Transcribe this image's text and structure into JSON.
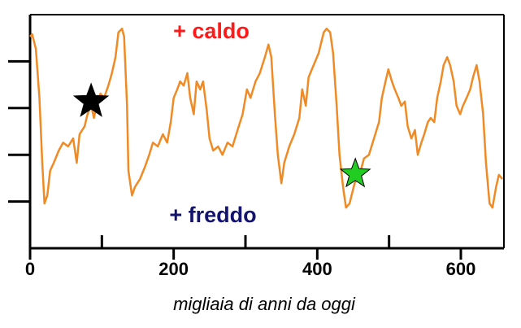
{
  "chart_data": {
    "type": "line",
    "x_label": "migliaia di anni da oggi",
    "annotations": [
      "+ caldo",
      "+ freddo"
    ],
    "annotation_colors": [
      "#ff1a1a",
      "#141470"
    ],
    "xlim": [
      0,
      660
    ],
    "xticks": [
      0,
      200,
      400,
      600
    ],
    "xminor_ticks": [
      100,
      300,
      500
    ],
    "ylim": [
      0,
      5
    ],
    "yticks": [
      1,
      2,
      3,
      4
    ],
    "ytick_labels": false,
    "series": [
      {
        "color": "#f08a24",
        "x": [
          0,
          3,
          8,
          13,
          17,
          20,
          24,
          28,
          33,
          40,
          46,
          53,
          60,
          65,
          69,
          76,
          80,
          85,
          89,
          94,
          98,
          103,
          109,
          114,
          119,
          123,
          128,
          131,
          135,
          137,
          142,
          146,
          153,
          160,
          166,
          171,
          178,
          185,
          191,
          196,
          200,
          205,
          209,
          214,
          219,
          223,
          228,
          232,
          237,
          241,
          246,
          250,
          255,
          262,
          268,
          275,
          282,
          289,
          296,
          302,
          307,
          314,
          320,
          327,
          332,
          336,
          341,
          345,
          350,
          354,
          361,
          368,
          375,
          379,
          384,
          388,
          395,
          402,
          409,
          413,
          418,
          422,
          427,
          431,
          436,
          440,
          445,
          452,
          459,
          465,
          472,
          479,
          486,
          490,
          495,
          499,
          504,
          508,
          513,
          517,
          522,
          526,
          531,
          536,
          540,
          545,
          549,
          554,
          558,
          563,
          567,
          572,
          576,
          581,
          585,
          590,
          594,
          599,
          603,
          608,
          613,
          617,
          622,
          626,
          631,
          635,
          640,
          644,
          649,
          653,
          658
        ],
        "values": [
          4.53,
          4.58,
          4.27,
          3.22,
          1.83,
          0.96,
          1.13,
          1.66,
          1.83,
          2.09,
          2.26,
          2.18,
          2.35,
          1.83,
          2.44,
          2.61,
          2.87,
          3.05,
          2.79,
          3.14,
          3.31,
          3.22,
          3.48,
          3.75,
          4.09,
          4.62,
          4.7,
          4.53,
          3.05,
          1.66,
          1.13,
          1.31,
          1.48,
          1.74,
          2.0,
          2.26,
          2.18,
          2.44,
          2.26,
          2.7,
          3.22,
          3.4,
          3.57,
          3.48,
          3.75,
          3.22,
          2.87,
          3.57,
          3.4,
          3.57,
          2.96,
          2.35,
          2.09,
          2.18,
          2.0,
          2.26,
          2.18,
          2.53,
          2.87,
          3.4,
          3.22,
          3.57,
          3.75,
          4.09,
          4.36,
          4.09,
          2.87,
          2.0,
          1.39,
          1.83,
          2.18,
          2.44,
          2.79,
          3.4,
          3.05,
          3.66,
          3.92,
          4.18,
          4.62,
          4.7,
          4.62,
          4.18,
          3.05,
          2.0,
          1.31,
          0.87,
          0.96,
          1.39,
          1.57,
          1.92,
          2.0,
          2.35,
          2.7,
          3.22,
          3.57,
          3.83,
          3.57,
          3.4,
          3.22,
          3.05,
          3.14,
          2.61,
          2.35,
          2.53,
          2.0,
          2.26,
          2.44,
          2.7,
          2.79,
          2.7,
          3.22,
          3.57,
          3.92,
          4.09,
          3.92,
          3.57,
          3.05,
          2.87,
          3.05,
          3.22,
          3.4,
          3.66,
          3.92,
          3.57,
          2.87,
          1.83,
          0.96,
          0.87,
          1.31,
          1.57,
          1.48
        ]
      }
    ],
    "markers": [
      {
        "x": 85,
        "y": 3.14,
        "color": "#000000"
      },
      {
        "x": 453,
        "y": 1.59,
        "color": "#22cc22"
      }
    ]
  }
}
